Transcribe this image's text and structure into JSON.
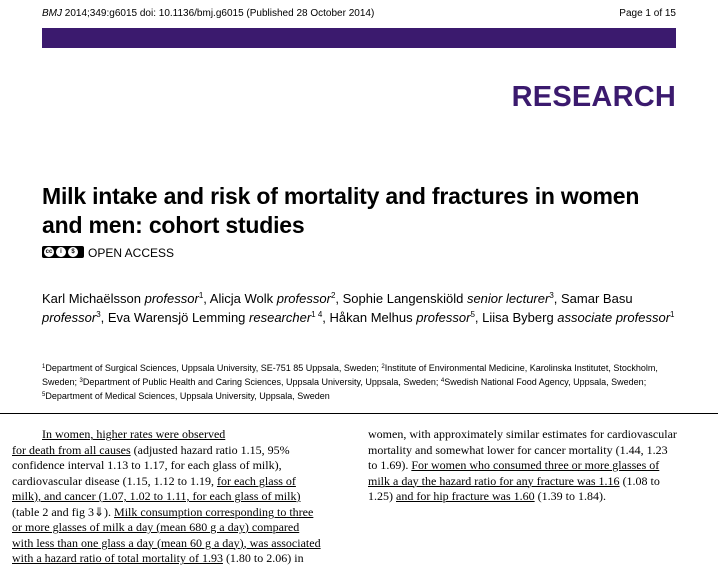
{
  "header": {
    "citation_journal": "BMJ",
    "citation_rest": " 2014;349:g6015 doi: 10.1136/bmj.g6015 (Published 28 October 2014)",
    "page": "Page 1 of 15"
  },
  "colors": {
    "brand_purple": "#3b1a6e"
  },
  "section_label": "RESEARCH",
  "title_line1": "Milk intake and risk of mortality and fractures in women",
  "title_line2": "and men: cohort studies",
  "license": {
    "icon": "creative-commons-icon",
    "label": "OPEN ACCESS"
  },
  "authors": [
    {
      "name": "Karl Michaëlsson",
      "role": "professor",
      "sup": "1",
      "sep": ", "
    },
    {
      "name": "Alicja Wolk",
      "role": "professor",
      "sup": "2",
      "sep": ", "
    },
    {
      "name": "Sophie Langenskiöld",
      "role": "senior lecturer",
      "sup": "3",
      "sep": ", "
    },
    {
      "name": "Samar Basu",
      "role": "professor",
      "sup": "3",
      "sep": ", "
    },
    {
      "name": "Eva Warensjö Lemming",
      "role": "researcher",
      "sup": "1 4",
      "sep": ", "
    },
    {
      "name": "Håkan Melhus",
      "role": "professor",
      "sup": "5",
      "sep": ", "
    },
    {
      "name": "Liisa Byberg",
      "role": "associate professor",
      "sup": "1",
      "sep": ""
    }
  ],
  "affiliations": [
    {
      "sup": "1",
      "text": "Department of Surgical Sciences, Uppsala University, SE-751 85 Uppsala, Sweden; "
    },
    {
      "sup": "2",
      "text": "Institute of Environmental Medicine, Karolinska Institutet, Stockholm, Sweden; "
    },
    {
      "sup": "3",
      "text": "Department of Public Health and Caring Sciences, Uppsala University, Uppsala, Sweden; "
    },
    {
      "sup": "4",
      "text": "Swedish National Food Agency, Uppsala, Sweden; "
    },
    {
      "sup": "5",
      "text": "Department of Medical Sciences, Uppsala University, Uppsala, Sweden"
    }
  ],
  "body_left": {
    "l1a": "In women, higher rates were observed",
    "l2": "for death from all causes",
    "l2b": " (adjusted hazard ratio 1.15, 95%",
    "l3": "confidence interval 1.13 to 1.17, for each glass of milk),",
    "l4": "cardiovascular disease (1.15, 1.12 to 1.19, ",
    "l4u": "for each glass of",
    "l5u": "milk), and cancer (1.07, 1.02 to 1.11, for each glass of milk)",
    "l6": "(table 2 and fig 3⇓). ",
    "l6u": "Milk consumption corresponding to three",
    "l7u": "or more glasses of milk a day (mean 680 g a day) compared",
    "l8u": "with less than one glass a day (mean 60 g a day), was associated",
    "l9u": "with a hazard ratio of total mortality of 1.93",
    "l9": " (1.80 to 2.06) in"
  },
  "body_right": {
    "r1": "women, with approximately similar estimates for cardiovascular",
    "r2": "mortality and somewhat lower for cancer mortality (1.44, 1.23",
    "r3": "to 1.69). ",
    "r3u": "For women who consumed three or more glasses of",
    "r4u": "milk a day the hazard ratio for any fracture was 1.16",
    "r4": " (1.08 to",
    "r5": "1.25) ",
    "r5u": "and for hip fracture was 1.60",
    "r5b": " (1.39 to 1.84)."
  }
}
